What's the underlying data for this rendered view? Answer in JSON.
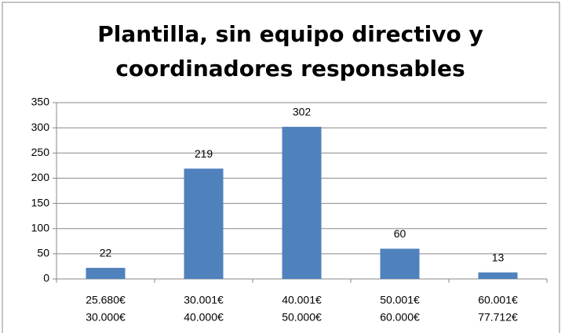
{
  "chart_data": {
    "type": "bar",
    "title": "Plantilla, sin equipo directivo y coordinadores responsables",
    "categories": [
      [
        "25.680€",
        "30.000€"
      ],
      [
        "30.001€",
        "40.000€"
      ],
      [
        "40.001€",
        "50.000€"
      ],
      [
        "50.001€",
        "60.000€"
      ],
      [
        "60.001€",
        "77.712€"
      ]
    ],
    "values": [
      22,
      219,
      302,
      60,
      13
    ],
    "color": "#4f81bd",
    "ylim": [
      0,
      350
    ],
    "yticks": [
      0,
      50,
      100,
      150,
      200,
      250,
      300,
      350
    ],
    "grid": true
  }
}
